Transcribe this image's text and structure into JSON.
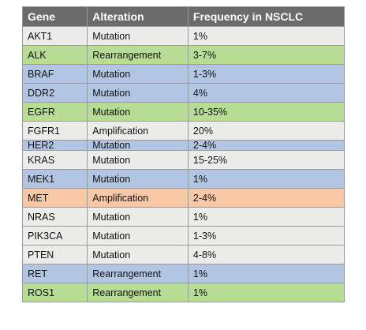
{
  "table": {
    "headers": [
      "Gene",
      "Alteration",
      "Frequency in NSCLC"
    ],
    "rows": [
      {
        "gene": "AKT1",
        "alteration": "Mutation",
        "frequency": "1%",
        "color": "#ececea"
      },
      {
        "gene": "ALK",
        "alteration": "Rearrangement",
        "frequency": "3-7%",
        "color": "#b7dc93"
      },
      {
        "gene": "BRAF",
        "alteration": "Mutation",
        "frequency": "1-3%",
        "color": "#b2c6e4"
      },
      {
        "gene": "DDR2",
        "alteration": "Mutation",
        "frequency": "4%",
        "color": "#b2c6e4"
      },
      {
        "gene": "EGFR",
        "alteration": "Mutation",
        "frequency": "10-35%",
        "color": "#b7dc93"
      },
      {
        "gene": "FGFR1",
        "alteration": "Amplification",
        "frequency": "20%",
        "color": "#ececea"
      },
      {
        "gene": "HER2",
        "alteration": "Mutation",
        "frequency": "2-4%",
        "color": "#b2c6e4"
      },
      {
        "gene": "KRAS",
        "alteration": "Mutation",
        "frequency": "15-25%",
        "color": "#ececea"
      },
      {
        "gene": "MEK1",
        "alteration": "Mutation",
        "frequency": "1%",
        "color": "#b2c6e4"
      },
      {
        "gene": "MET",
        "alteration": "Amplification",
        "frequency": "2-4%",
        "color": "#f8c8a6"
      },
      {
        "gene": "NRAS",
        "alteration": "Mutation",
        "frequency": "1%",
        "color": "#ececea"
      },
      {
        "gene": "PIK3CA",
        "alteration": "Mutation",
        "frequency": "1-3%",
        "color": "#ececea"
      },
      {
        "gene": "PTEN",
        "alteration": "Mutation",
        "frequency": "4-8%",
        "color": "#ececea"
      },
      {
        "gene": "RET",
        "alteration": "Rearrangement",
        "frequency": "1%",
        "color": "#b2c6e4"
      },
      {
        "gene": "ROS1",
        "alteration": "Rearrangement",
        "frequency": "1%",
        "color": "#b7dc93"
      }
    ]
  }
}
